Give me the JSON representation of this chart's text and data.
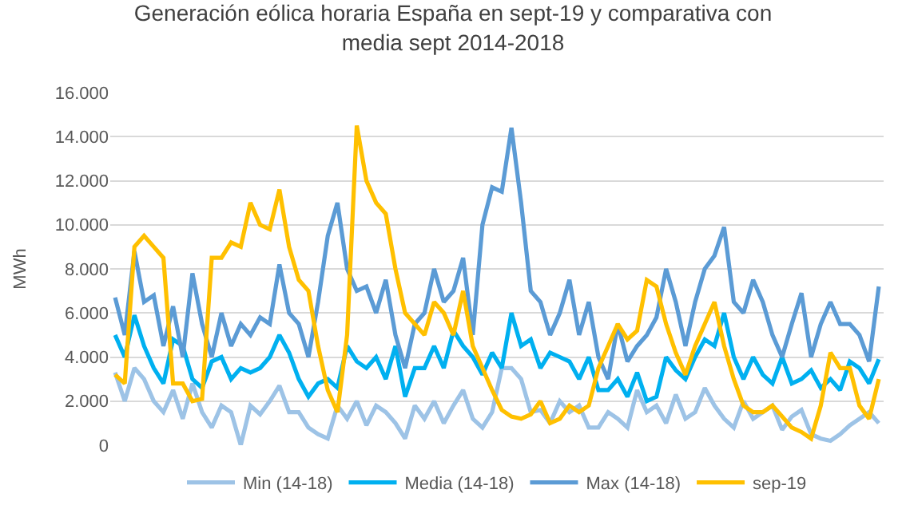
{
  "chart_data": {
    "type": "line",
    "title": "Generación eólica horaria España en sept-19 y comparativa con\nmedia sept 2014-2018",
    "ylabel": "MWh",
    "categories": [
      null,
      null,
      null,
      null,
      null,
      null,
      null,
      null,
      null,
      null,
      null,
      null,
      null,
      null,
      null,
      null,
      null,
      null,
      null,
      null,
      null,
      null,
      null,
      null,
      null,
      null,
      null,
      null,
      null,
      null,
      null,
      null,
      null,
      null,
      null,
      null,
      null,
      null,
      null,
      null,
      null,
      null,
      null,
      null,
      null,
      null,
      null,
      null,
      null,
      null,
      null,
      null,
      null,
      null,
      null,
      null,
      null,
      null,
      null,
      null,
      null,
      null,
      null,
      null,
      null,
      null,
      null,
      null,
      null,
      null,
      null,
      null,
      null,
      null,
      null,
      null,
      null,
      null,
      null,
      null
    ],
    "series": [
      {
        "name": "Min (14-18)",
        "color": "#9dc3e6",
        "values": [
          3300,
          2000,
          3500,
          3000,
          2000,
          1500,
          2500,
          1200,
          2800,
          1500,
          800,
          1800,
          1500,
          0,
          1800,
          1400,
          2000,
          2700,
          1500,
          1500,
          800,
          500,
          300,
          1800,
          1200,
          2000,
          900,
          1800,
          1500,
          1000,
          300,
          1800,
          1200,
          2000,
          1000,
          1800,
          2500,
          1200,
          800,
          1500,
          3500,
          3500,
          3000,
          1500,
          1600,
          1000,
          2000,
          1500,
          1800,
          800,
          800,
          1500,
          1200,
          800,
          2500,
          1500,
          1800,
          1000,
          2300,
          1200,
          1500,
          2600,
          1800,
          1200,
          800,
          2000,
          1200,
          1500,
          1800,
          700,
          1300,
          1600,
          500,
          300,
          200,
          500,
          900,
          1200,
          1500,
          1000
        ]
      },
      {
        "name": "Media (14-18)",
        "color": "#00b0f0",
        "values": [
          5000,
          4000,
          5900,
          4500,
          3500,
          2800,
          4800,
          4500,
          3000,
          2600,
          3800,
          4000,
          3000,
          3500,
          3300,
          3500,
          4000,
          5000,
          4200,
          3000,
          2200,
          2800,
          3000,
          2600,
          4500,
          3800,
          3500,
          4000,
          3000,
          4500,
          2200,
          3500,
          3500,
          4500,
          3500,
          5200,
          4500,
          4000,
          3200,
          4200,
          3500,
          6000,
          4500,
          4800,
          3500,
          4200,
          4000,
          3800,
          3000,
          4000,
          2500,
          2500,
          3000,
          2200,
          3300,
          2000,
          2200,
          4000,
          3400,
          3000,
          4000,
          4800,
          4500,
          6000,
          4000,
          3000,
          4000,
          3200,
          2800,
          4000,
          2800,
          3000,
          3400,
          2600,
          3000,
          2500,
          3800,
          3500,
          2800,
          3900
        ]
      },
      {
        "name": "Max (14-18)",
        "color": "#5b9bd5",
        "values": [
          6700,
          5000,
          8800,
          6500,
          6800,
          4500,
          6300,
          4000,
          7800,
          5500,
          4000,
          6000,
          4500,
          5500,
          5000,
          5800,
          5500,
          8200,
          6000,
          5500,
          4000,
          6500,
          9500,
          11000,
          8000,
          7000,
          7200,
          6000,
          7500,
          5000,
          3500,
          5500,
          6000,
          8000,
          6500,
          7000,
          8500,
          5000,
          10000,
          11700,
          11500,
          14400,
          11000,
          7000,
          6500,
          5000,
          6000,
          7500,
          5000,
          6500,
          4000,
          3000,
          5500,
          3800,
          4500,
          5000,
          5800,
          8000,
          6500,
          4500,
          6500,
          8000,
          8600,
          9900,
          6500,
          6000,
          7500,
          6500,
          5000,
          4000,
          5500,
          6900,
          4000,
          5500,
          6500,
          5500,
          5500,
          5000,
          3800,
          7200
        ]
      },
      {
        "name": "sep-19",
        "color": "#ffc000",
        "values": [
          3200,
          2800,
          9000,
          9500,
          9000,
          8500,
          2800,
          2800,
          2000,
          2100,
          8500,
          8500,
          9200,
          9000,
          11000,
          10000,
          9800,
          11600,
          9000,
          7500,
          7000,
          4500,
          2500,
          1500,
          5000,
          14500,
          12000,
          11000,
          10500,
          8000,
          6000,
          5500,
          5000,
          6500,
          6000,
          5000,
          7000,
          4500,
          3500,
          2500,
          1600,
          1300,
          1200,
          1400,
          2000,
          1000,
          1200,
          1800,
          1500,
          1800,
          3500,
          4500,
          5500,
          4800,
          5200,
          7500,
          7200,
          5500,
          4200,
          3200,
          4500,
          5500,
          6500,
          4500,
          3000,
          1800,
          1500,
          1500,
          1800,
          1300,
          800,
          600,
          300,
          1800,
          4200,
          3500,
          3500,
          1800,
          1200,
          3000
        ]
      }
    ],
    "ylim": [
      0,
      16000
    ],
    "yticks": [
      {
        "value": 0,
        "label": "0"
      },
      {
        "value": 2000,
        "label": "2.000"
      },
      {
        "value": 4000,
        "label": "4.000"
      },
      {
        "value": 6000,
        "label": "6.000"
      },
      {
        "value": 8000,
        "label": "8.000"
      },
      {
        "value": 10000,
        "label": "10.000"
      },
      {
        "value": 12000,
        "label": "12.000"
      },
      {
        "value": 14000,
        "label": "14.000"
      },
      {
        "value": 16000,
        "label": "16.000"
      }
    ],
    "grid": "y",
    "legend": "bottom",
    "tick_labels": "y",
    "marker": "none",
    "line_style": "solid"
  }
}
